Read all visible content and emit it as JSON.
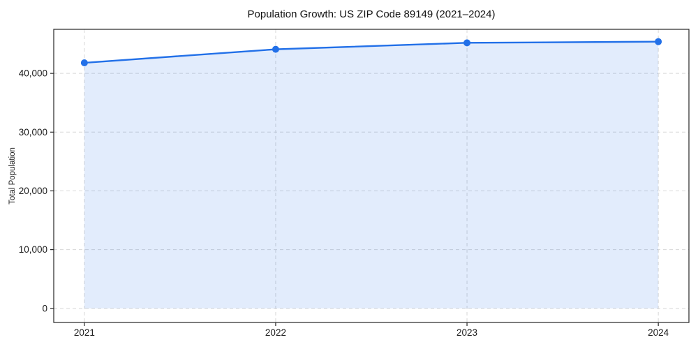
{
  "chart_data": {
    "type": "line",
    "title": "Population Growth: US ZIP Code 89149 (2021–2024)",
    "xlabel": "",
    "ylabel": "Total Population",
    "x": [
      2021,
      2022,
      2023,
      2024
    ],
    "x_tick_labels": [
      "2021",
      "2022",
      "2023",
      "2024"
    ],
    "series": [
      {
        "name": "Total Population",
        "values": [
          41800,
          44100,
          45200,
          45400
        ]
      }
    ],
    "y_ticks": [
      0,
      10000,
      20000,
      30000,
      40000
    ],
    "y_tick_labels": [
      "0",
      "10,000",
      "20,000",
      "30,000",
      "40,000"
    ],
    "ylim": [
      -2400,
      47500
    ],
    "xlim": [
      2020.84,
      2024.16
    ],
    "grid": true,
    "grid_style": "dashed",
    "legend": false,
    "area_fill": true,
    "marker": "circle",
    "style": {
      "line_color": "#2270e8",
      "marker_color": "#2270e8",
      "area_fill_color": "#2270e8",
      "area_fill_opacity": 0.13,
      "grid_color": "#d7d7d7",
      "axis_color": "#262626",
      "tick_text_color": "#1a1a1a",
      "background": "#ffffff"
    }
  }
}
